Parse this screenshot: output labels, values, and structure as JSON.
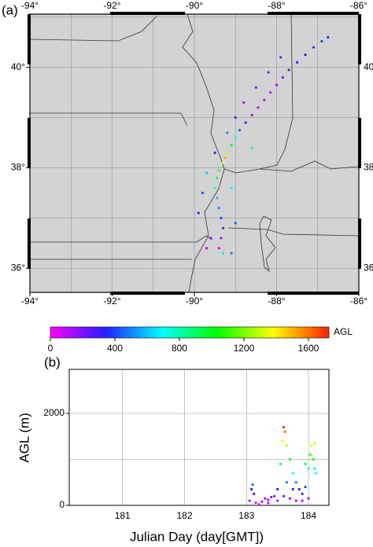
{
  "chart_data": [
    {
      "type": "map",
      "label": "(a)",
      "xlim": [
        -94,
        -86
      ],
      "ylim": [
        35.52,
        41.06
      ],
      "xticks": [
        {
          "value": -94,
          "label": "-94°"
        },
        {
          "value": -92,
          "label": "-92°"
        },
        {
          "value": -90,
          "label": "-90°"
        },
        {
          "value": -88,
          "label": "-88°"
        },
        {
          "value": -86,
          "label": "-86°"
        }
      ],
      "yticks": [
        {
          "value": 36,
          "label": "36°"
        },
        {
          "value": 38,
          "label": "38°"
        },
        {
          "value": 40,
          "label": "40°"
        }
      ],
      "xgrid": [
        -93,
        -92,
        -91,
        -90,
        -89,
        -88,
        -87
      ],
      "ygrid": [
        36,
        37,
        38,
        39,
        40,
        41
      ],
      "x": [
        -86.75,
        -86.9,
        -87.1,
        -87.3,
        -87.5,
        -87.7,
        -87.85,
        -88.0,
        -88.15,
        -88.3,
        -88.45,
        -88.6,
        -88.75,
        -88.9,
        -89.0,
        -89.1,
        -89.2,
        -89.25,
        -89.3,
        -89.4,
        -89.45,
        -89.5,
        -89.45,
        -89.4,
        -89.35,
        -89.3,
        -89.35,
        -89.4,
        -89.3,
        -89.1,
        -87.9,
        -88.2,
        -88.5,
        -88.8,
        -89.0,
        -89.2,
        -89.5,
        -89.7,
        -89.8,
        -89.9,
        -89.6,
        -89.7,
        -89.0,
        -89.1,
        -88.6
      ],
      "y": [
        40.6,
        40.52,
        40.4,
        40.25,
        40.1,
        39.95,
        39.8,
        39.65,
        39.5,
        39.35,
        39.2,
        39.05,
        38.9,
        38.75,
        38.6,
        38.45,
        38.3,
        38.2,
        38.1,
        37.95,
        37.8,
        37.6,
        37.4,
        37.2,
        37.0,
        36.8,
        36.6,
        36.4,
        36.3,
        36.3,
        40.2,
        39.9,
        39.6,
        39.3,
        39.0,
        38.7,
        38.3,
        37.9,
        37.5,
        37.1,
        36.6,
        36.4,
        36.9,
        37.6,
        38.4
      ],
      "c": [
        350,
        400,
        380,
        350,
        300,
        250,
        200,
        150,
        100,
        120,
        150,
        200,
        300,
        450,
        700,
        1000,
        1300,
        1500,
        1400,
        1100,
        900,
        750,
        600,
        500,
        400,
        300,
        150,
        50,
        800,
        500,
        250,
        200,
        150,
        100,
        250,
        500,
        350,
        600,
        400,
        300,
        200,
        120,
        450,
        700,
        850
      ]
    },
    {
      "type": "colorbar",
      "label": "AGL",
      "lim": [
        0,
        1727
      ],
      "ticks": [
        0,
        400,
        800,
        1200,
        1600
      ],
      "colors": [
        "#ff00ff",
        "#2020ff",
        "#00ffff",
        "#00ff00",
        "#ffff00",
        "#ff2000"
      ]
    },
    {
      "type": "scatter",
      "label": "(b)",
      "xlabel": "Julian Day  (day[GMT])",
      "ylabel": "AGL (m)",
      "xlim": [
        180.14,
        184.33
      ],
      "ylim": [
        0,
        2957
      ],
      "xticks": [
        181,
        182,
        183,
        184
      ],
      "yticks": [
        0,
        2000
      ],
      "ygrid": [
        1000,
        2000
      ],
      "x": [
        183.05,
        183.08,
        183.1,
        183.12,
        183.15,
        183.2,
        183.25,
        183.3,
        183.35,
        183.4,
        183.45,
        183.5,
        183.55,
        183.58,
        183.6,
        183.62,
        183.65,
        183.7,
        183.75,
        183.8,
        183.85,
        183.9,
        183.95,
        184.0,
        184.03,
        184.05,
        184.08,
        184.1,
        184.12,
        183.6,
        183.7,
        183.8,
        183.9,
        184.0,
        183.35,
        183.5,
        184.1,
        183.65,
        183.75,
        183.95
      ],
      "y": [
        100,
        350,
        450,
        250,
        60,
        20,
        80,
        150,
        120,
        180,
        200,
        350,
        900,
        1400,
        1700,
        1600,
        1300,
        1000,
        700,
        500,
        350,
        250,
        400,
        800,
        1100,
        1300,
        1000,
        800,
        700,
        200,
        150,
        100,
        100,
        150,
        50,
        100,
        1350,
        500,
        350,
        900
      ]
    }
  ]
}
